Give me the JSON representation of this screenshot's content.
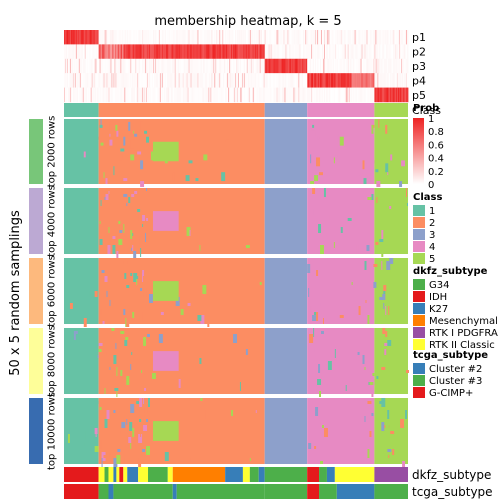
{
  "chart_data": {
    "type": "heatmap",
    "title": "membership heatmap, k = 5",
    "ylabel": "50 x 5 random samplings",
    "membership_rows": [
      "p1",
      "p2",
      "p3",
      "p4",
      "p5"
    ],
    "class_row_label": "Class",
    "row_groups": [
      {
        "name": "top 2000 rows",
        "color": "#78C679"
      },
      {
        "name": "top 4000 rows",
        "color": "#BCA9D3"
      },
      {
        "name": "top 6000 rows",
        "color": "#FDB97D"
      },
      {
        "name": "top 8000 rows",
        "color": "#FEFE99"
      },
      {
        "name": "top 10000 rows",
        "color": "#386CB0"
      }
    ],
    "annotation_rows": [
      "dkfz_subtype",
      "tcga_subtype"
    ],
    "legends": {
      "prob": {
        "title": "Prob",
        "ticks": [
          "1",
          "0.8",
          "0.6",
          "0.4",
          "0.2",
          "0"
        ],
        "low": "#FFFFFF",
        "high": "#EE2222"
      },
      "class": {
        "title": "Class",
        "items": [
          {
            "label": "1",
            "color": "#66C2A5"
          },
          {
            "label": "2",
            "color": "#FC8D62"
          },
          {
            "label": "3",
            "color": "#8DA0CB"
          },
          {
            "label": "4",
            "color": "#E78AC3"
          },
          {
            "label": "5",
            "color": "#A6D854"
          }
        ]
      },
      "dkfz_subtype": {
        "title": "dkfz_subtype",
        "items": [
          {
            "label": "G34",
            "color": "#4DAF4A"
          },
          {
            "label": "IDH",
            "color": "#E41A1C"
          },
          {
            "label": "K27",
            "color": "#377EB8"
          },
          {
            "label": "Mesenchymal",
            "color": "#FF7F00"
          },
          {
            "label": "RTK I PDGFRA",
            "color": "#984EA3"
          },
          {
            "label": "RTK II Classic",
            "color": "#FFFF33"
          }
        ]
      },
      "tcga_subtype": {
        "title": "tcga_subtype",
        "items": [
          {
            "label": "Cluster #2",
            "color": "#377EB8"
          },
          {
            "label": "Cluster #3",
            "color": "#4DAF4A"
          },
          {
            "label": "G-CIMP+",
            "color": "#E41A1C"
          }
        ]
      }
    },
    "columns": {
      "count": 348,
      "class_segments": [
        {
          "class": "1",
          "from": 0,
          "to": 35
        },
        {
          "class": "2",
          "from": 35,
          "to": 203
        },
        {
          "class": "3",
          "from": 203,
          "to": 246
        },
        {
          "class": "4",
          "from": 246,
          "to": 314
        },
        {
          "class": "5",
          "from": 314,
          "to": 348
        }
      ],
      "dkfz_segments": [
        {
          "label": "IDH",
          "from": 0,
          "to": 35
        },
        {
          "label": "RTK II Classic",
          "from": 35,
          "to": 41
        },
        {
          "label": "G34",
          "from": 41,
          "to": 45
        },
        {
          "label": "RTK II Classic",
          "from": 45,
          "to": 50
        },
        {
          "label": "K27",
          "from": 50,
          "to": 53
        },
        {
          "label": "RTK II Classic",
          "from": 53,
          "to": 56
        },
        {
          "label": "IDH",
          "from": 56,
          "to": 60
        },
        {
          "label": "RTK II Classic",
          "from": 60,
          "to": 64
        },
        {
          "label": "K27",
          "from": 64,
          "to": 75
        },
        {
          "label": "RTK II Classic",
          "from": 75,
          "to": 85
        },
        {
          "label": "G34",
          "from": 85,
          "to": 105
        },
        {
          "label": "RTK II Classic",
          "from": 105,
          "to": 110
        },
        {
          "label": "Mesenchymal",
          "from": 110,
          "to": 163
        },
        {
          "label": "K27",
          "from": 163,
          "to": 181
        },
        {
          "label": "RTK II Classic",
          "from": 181,
          "to": 188
        },
        {
          "label": "G34",
          "from": 188,
          "to": 197
        },
        {
          "label": "K27",
          "from": 197,
          "to": 203
        },
        {
          "label": "G34",
          "from": 203,
          "to": 246
        },
        {
          "label": "IDH",
          "from": 246,
          "to": 258
        },
        {
          "label": "G34",
          "from": 258,
          "to": 266
        },
        {
          "label": "K27",
          "from": 266,
          "to": 274
        },
        {
          "label": "RTK II Classic",
          "from": 274,
          "to": 314
        },
        {
          "label": "RTK I PDGFRA",
          "from": 314,
          "to": 348
        }
      ],
      "tcga_segments": [
        {
          "label": "G-CIMP+",
          "from": 0,
          "to": 35
        },
        {
          "label": "Cluster #3",
          "from": 35,
          "to": 45
        },
        {
          "label": "Cluster #2",
          "from": 45,
          "to": 50
        },
        {
          "label": "Cluster #3",
          "from": 50,
          "to": 110
        },
        {
          "label": "Cluster #2",
          "from": 110,
          "to": 114
        },
        {
          "label": "Cluster #3",
          "from": 114,
          "to": 203
        },
        {
          "label": "Cluster #3",
          "from": 203,
          "to": 246
        },
        {
          "label": "G-CIMP+",
          "from": 246,
          "to": 258
        },
        {
          "label": "Cluster #3",
          "from": 258,
          "to": 276
        },
        {
          "label": "Cluster #2",
          "from": 276,
          "to": 314
        },
        {
          "label": "Cluster #3",
          "from": 314,
          "to": 348
        }
      ]
    }
  }
}
